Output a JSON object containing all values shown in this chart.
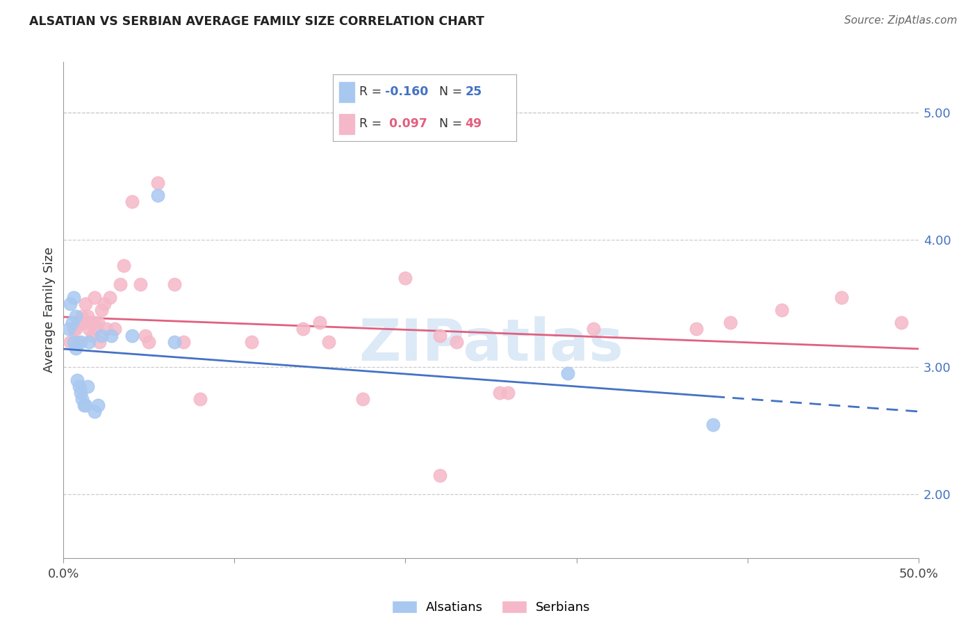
{
  "title": "ALSATIAN VS SERBIAN AVERAGE FAMILY SIZE CORRELATION CHART",
  "source": "Source: ZipAtlas.com",
  "ylabel": "Average Family Size",
  "yticks_right": [
    2.0,
    3.0,
    4.0,
    5.0
  ],
  "xlim": [
    0.0,
    0.5
  ],
  "ylim": [
    1.5,
    5.4
  ],
  "alsatian_color": "#a8c8f0",
  "serbian_color": "#f5b8c8",
  "alsatian_line_color": "#4472c4",
  "serbian_line_color": "#e06080",
  "watermark_color": "#c0d8f0",
  "als_R": -0.16,
  "als_N": 25,
  "ser_R": 0.097,
  "ser_N": 49,
  "alsatian_x": [
    0.003,
    0.004,
    0.005,
    0.006,
    0.006,
    0.007,
    0.007,
    0.008,
    0.009,
    0.01,
    0.01,
    0.011,
    0.012,
    0.013,
    0.014,
    0.015,
    0.018,
    0.02,
    0.022,
    0.028,
    0.04,
    0.055,
    0.065,
    0.295,
    0.38
  ],
  "alsatian_y": [
    3.3,
    3.5,
    3.35,
    3.2,
    3.55,
    3.15,
    3.4,
    2.9,
    2.85,
    3.2,
    2.8,
    2.75,
    2.7,
    2.7,
    2.85,
    3.2,
    2.65,
    2.7,
    3.25,
    3.25,
    3.25,
    4.35,
    3.2,
    2.95,
    2.55
  ],
  "serbian_x": [
    0.004,
    0.006,
    0.007,
    0.008,
    0.01,
    0.011,
    0.012,
    0.013,
    0.014,
    0.015,
    0.016,
    0.017,
    0.018,
    0.018,
    0.019,
    0.02,
    0.021,
    0.022,
    0.024,
    0.025,
    0.027,
    0.03,
    0.033,
    0.035,
    0.04,
    0.045,
    0.048,
    0.05,
    0.055,
    0.065,
    0.07,
    0.08,
    0.11,
    0.14,
    0.15,
    0.155,
    0.175,
    0.2,
    0.22,
    0.255,
    0.26,
    0.31,
    0.37,
    0.39,
    0.42,
    0.455,
    0.49,
    0.22,
    0.23
  ],
  "serbian_y": [
    3.2,
    3.3,
    3.3,
    3.2,
    3.35,
    3.4,
    3.35,
    3.5,
    3.4,
    3.3,
    3.35,
    3.25,
    3.35,
    3.55,
    3.3,
    3.35,
    3.2,
    3.45,
    3.5,
    3.3,
    3.55,
    3.3,
    3.65,
    3.8,
    4.3,
    3.65,
    3.25,
    3.2,
    4.45,
    3.65,
    3.2,
    2.75,
    3.2,
    3.3,
    3.35,
    3.2,
    2.75,
    3.7,
    3.25,
    2.8,
    2.8,
    3.3,
    3.3,
    3.35,
    3.45,
    3.55,
    3.35,
    2.15,
    3.2
  ]
}
